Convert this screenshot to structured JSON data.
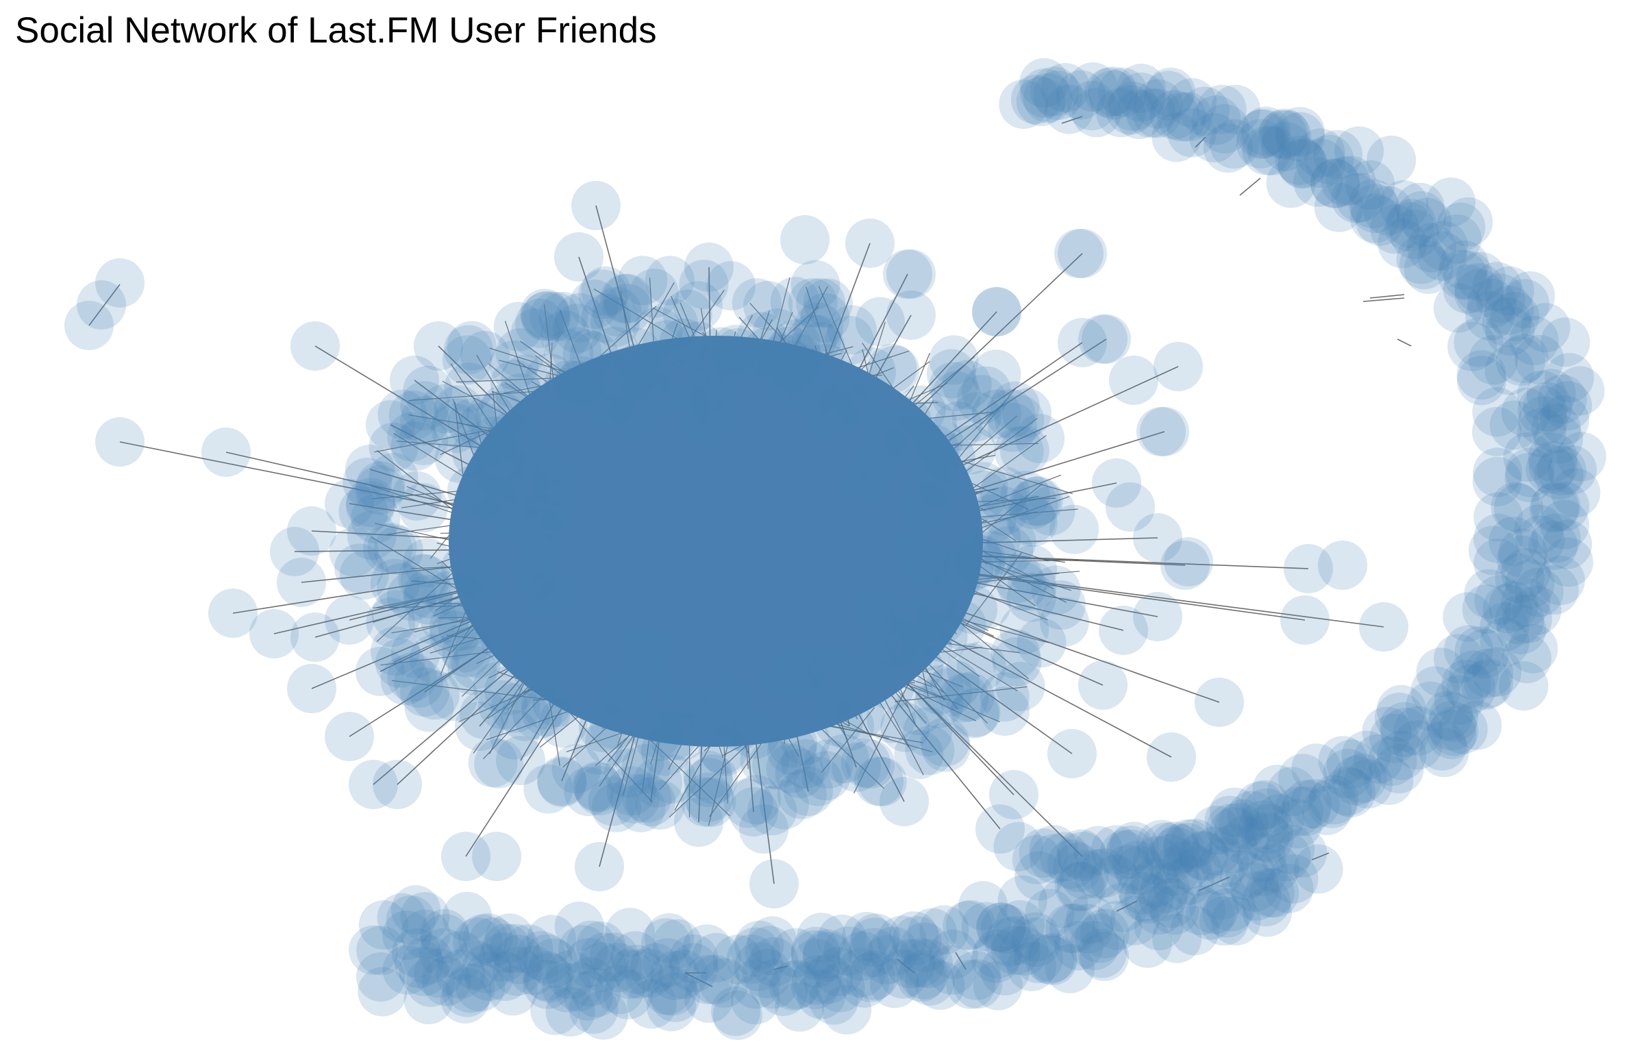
{
  "title": "Social Network of Last.FM User Friends",
  "colors": {
    "node_fill": "#4682b4",
    "node_opacity": 0.2,
    "edge_color": "#555555",
    "core_color": "#4a80b1",
    "background": "#ffffff"
  }
}
